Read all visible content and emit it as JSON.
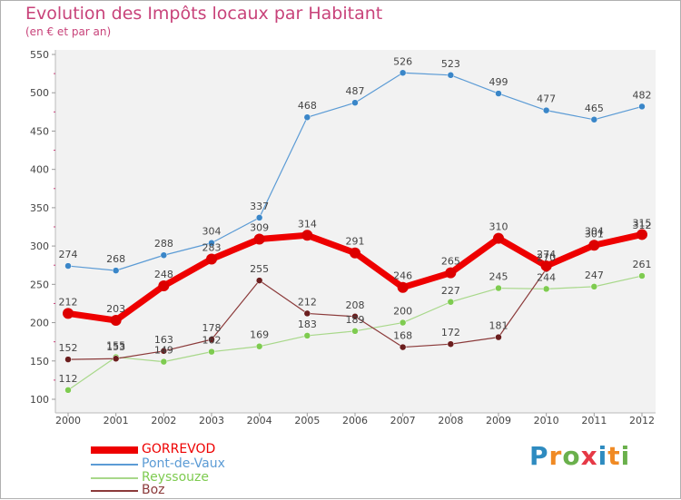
{
  "chart_data": {
    "type": "line",
    "title": "Evolution des Impôts locaux par Habitant",
    "subtitle": "(en € et par an)",
    "x": [
      "2000",
      "2001",
      "2002",
      "2003",
      "2004",
      "2005",
      "2006",
      "2007",
      "2008",
      "2009",
      "2010",
      "2011",
      "2012"
    ],
    "ylim": [
      100,
      550
    ],
    "yticks": [
      "100",
      "150",
      "200",
      "250",
      "300",
      "350",
      "400",
      "450",
      "500",
      "550"
    ],
    "grid": false,
    "series": [
      {
        "name": "Pont-de-Vaux",
        "color": "#5b9bd5",
        "marker": "#3a86c8",
        "values": [
          274,
          268,
          288,
          304,
          337,
          468,
          487,
          526,
          523,
          499,
          477,
          465,
          482
        ],
        "labels": [
          "274",
          "268",
          "288",
          "304",
          "337",
          "468",
          "487",
          "526",
          "523",
          "499",
          "477",
          "465",
          "482"
        ]
      },
      {
        "name": "Reyssouze",
        "color": "#a8d88a",
        "marker": "#7ecb50",
        "values": [
          112,
          155,
          149,
          162,
          169,
          183,
          189,
          200,
          227,
          245,
          244,
          247,
          261
        ],
        "labels": [
          "112",
          "155",
          "149",
          "162",
          "169",
          "183",
          "189",
          "200",
          "227",
          "245",
          "244",
          "247",
          "261"
        ]
      },
      {
        "name": "Boz",
        "color": "#8b3a3a",
        "marker": "#6b1e1e",
        "values": [
          152,
          153,
          163,
          178,
          255,
          212,
          208,
          168,
          172,
          181,
          270,
          304,
          312
        ],
        "labels": [
          "152",
          "153",
          "163",
          "178",
          "255",
          "212",
          "208",
          "168",
          "172",
          "181",
          "270",
          "304",
          "312"
        ]
      },
      {
        "name": "GORREVOD",
        "color": "#ee0000",
        "marker": "#dd0000",
        "values": [
          212,
          203,
          248,
          283,
          309,
          314,
          291,
          246,
          265,
          310,
          274,
          301,
          315
        ],
        "labels": [
          "212",
          "203",
          "248",
          "283",
          "309",
          "314",
          "291",
          "246",
          "265",
          "310",
          "274",
          "301",
          "315"
        ]
      }
    ],
    "legend": [
      {
        "name": "GORREVOD",
        "color": "#ee0000",
        "thickness": "thick"
      },
      {
        "name": "Pont-de-Vaux",
        "color": "#5b9bd5",
        "thickness": "thin"
      },
      {
        "name": "Reyssouze",
        "color": "#a8d88a",
        "thickness": "thin"
      },
      {
        "name": "Boz",
        "color": "#8b3a3a",
        "thickness": "thin"
      }
    ]
  },
  "logo": {
    "letters": [
      "P",
      "r",
      "o",
      "x",
      "i",
      "t",
      "i"
    ],
    "colors": [
      "#2e8bc0",
      "#f08a24",
      "#6ab04c",
      "#e63946",
      "#2e8bc0",
      "#f08a24",
      "#6ab04c"
    ]
  }
}
